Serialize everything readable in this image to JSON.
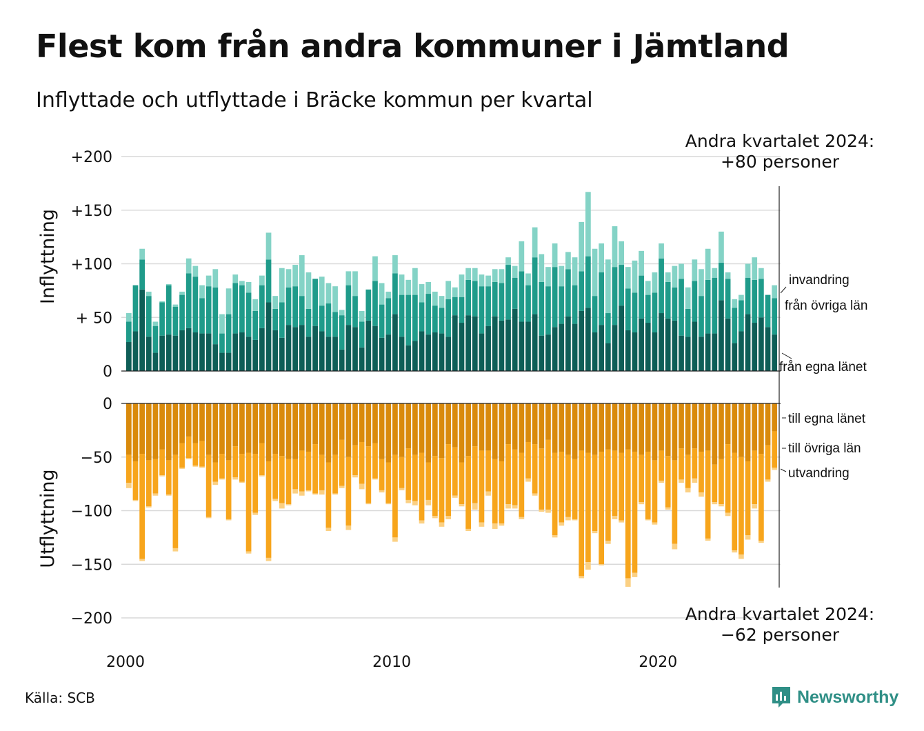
{
  "title": "Flest kom från andra kommuner i Jämtland",
  "subtitle": "Inflyttade och utflyttade i Bräcke kommun per kvartal",
  "source": "Källa: SCB",
  "brand": "Newsworthy",
  "annotations": {
    "in_line1": "Andra kvartalet 2024:",
    "in_line2": "+80 personer",
    "out_line1": "Andra kvartalet 2024:",
    "out_line2": "−62 personer"
  },
  "colors": {
    "in_own_county": "#0e5e57",
    "in_other_counties": "#1f9b8a",
    "in_immigration": "#84d3c6",
    "out_own_county": "#d98a0c",
    "out_other_counties": "#f7a51c",
    "out_emigration": "#fbd083",
    "brand": "#2f8f86"
  },
  "chart_data": [
    {
      "type": "bar",
      "stacked": true,
      "axis_title": "Inflyttning",
      "ylim": [
        0,
        200
      ],
      "yticks": [
        0,
        50,
        100,
        150,
        200
      ],
      "ytick_labels": [
        "0",
        "+ 50",
        "+100",
        "+150",
        "+200"
      ],
      "grid": true,
      "x_start": "2000 Q1",
      "x_end": "2024 Q2",
      "xtick_labels": [
        "2000",
        "2010",
        "2020"
      ],
      "series": [
        {
          "name": "från egna länet",
          "values": [
            27,
            37,
            76,
            32,
            17,
            33,
            34,
            33,
            38,
            40,
            36,
            35,
            35,
            25,
            17,
            17,
            35,
            36,
            32,
            29,
            40,
            64,
            38,
            31,
            43,
            41,
            43,
            32,
            42,
            37,
            32,
            32,
            20,
            43,
            41,
            22,
            47,
            42,
            31,
            34,
            53,
            32,
            24,
            28,
            37,
            34,
            36,
            35,
            32,
            52,
            45,
            52,
            51,
            35,
            42,
            51,
            47,
            48,
            58,
            46,
            46,
            53,
            33,
            34,
            41,
            44,
            51,
            44,
            56,
            59,
            36,
            43,
            26,
            43,
            61,
            38,
            36,
            49,
            45,
            36,
            54,
            49,
            47,
            33,
            32,
            46,
            32,
            35,
            35,
            66,
            49,
            26,
            37,
            53,
            45,
            50,
            41,
            34
          ]
        },
        {
          "name": "från övriga län",
          "values": [
            19,
            43,
            28,
            38,
            25,
            31,
            46,
            27,
            33,
            51,
            52,
            33,
            44,
            53,
            18,
            36,
            47,
            44,
            41,
            27,
            40,
            40,
            20,
            33,
            35,
            38,
            27,
            26,
            44,
            24,
            31,
            23,
            32,
            37,
            29,
            24,
            29,
            42,
            31,
            34,
            38,
            39,
            47,
            43,
            27,
            38,
            25,
            24,
            35,
            17,
            24,
            33,
            33,
            44,
            37,
            32,
            35,
            51,
            29,
            47,
            34,
            53,
            50,
            45,
            56,
            35,
            44,
            36,
            37,
            48,
            34,
            49,
            28,
            54,
            38,
            39,
            37,
            40,
            26,
            37,
            51,
            34,
            31,
            53,
            26,
            38,
            38,
            50,
            52,
            35,
            37,
            33,
            29,
            34,
            40,
            36,
            30,
            34
          ]
        },
        {
          "name": "invandring",
          "values": [
            8,
            0,
            10,
            4,
            4,
            1,
            1,
            2,
            3,
            14,
            10,
            12,
            10,
            17,
            18,
            24,
            8,
            4,
            10,
            11,
            9,
            25,
            12,
            32,
            17,
            20,
            38,
            34,
            0,
            27,
            19,
            24,
            5,
            13,
            23,
            10,
            0,
            23,
            20,
            6,
            17,
            19,
            14,
            25,
            17,
            11,
            13,
            11,
            17,
            9,
            21,
            11,
            12,
            11,
            10,
            12,
            13,
            7,
            11,
            28,
            11,
            28,
            26,
            18,
            22,
            19,
            16,
            26,
            46,
            60,
            44,
            27,
            50,
            38,
            22,
            20,
            30,
            23,
            13,
            19,
            14,
            9,
            20,
            14,
            20,
            20,
            25,
            29,
            9,
            29,
            6,
            8,
            5,
            13,
            21,
            10,
            0,
            12
          ]
        }
      ]
    },
    {
      "type": "bar",
      "stacked": true,
      "axis_title": "Utflyttning",
      "ylim": [
        -200,
        0
      ],
      "yticks": [
        0,
        -50,
        -100,
        -150,
        -200
      ],
      "ytick_labels": [
        "0",
        "−50",
        "−100",
        "−150",
        "−200"
      ],
      "grid": true,
      "x_start": "2000 Q1",
      "x_end": "2024 Q2",
      "series": [
        {
          "name": "till egna länet",
          "values": [
            -48,
            -54,
            -47,
            -53,
            -52,
            -43,
            -53,
            -48,
            -37,
            -31,
            -37,
            -35,
            -48,
            -55,
            -47,
            -53,
            -40,
            -47,
            -46,
            -47,
            -37,
            -54,
            -47,
            -49,
            -52,
            -52,
            -44,
            -45,
            -38,
            -48,
            -55,
            -48,
            -34,
            -50,
            -39,
            -36,
            -40,
            -37,
            -52,
            -55,
            -48,
            -50,
            -42,
            -48,
            -46,
            -55,
            -49,
            -51,
            -38,
            -41,
            -55,
            -49,
            -40,
            -44,
            -44,
            -52,
            -54,
            -38,
            -43,
            -46,
            -36,
            -38,
            -42,
            -34,
            -46,
            -45,
            -48,
            -52,
            -44,
            -46,
            -48,
            -45,
            -43,
            -44,
            -46,
            -43,
            -45,
            -48,
            -45,
            -53,
            -44,
            -49,
            -53,
            -42,
            -48,
            -42,
            -45,
            -44,
            -57,
            -52,
            -38,
            -46,
            -50,
            -54,
            -44,
            -47,
            -39,
            -26
          ]
        },
        {
          "name": "till övriga län",
          "values": [
            -26,
            -36,
            -98,
            -43,
            -32,
            -24,
            -32,
            -87,
            -23,
            -20,
            -21,
            -24,
            -58,
            -18,
            -23,
            -55,
            -29,
            -26,
            -92,
            -55,
            -30,
            -90,
            -42,
            -44,
            -42,
            -28,
            -38,
            -36,
            -46,
            -33,
            -61,
            -36,
            -43,
            -64,
            -28,
            -39,
            -53,
            -33,
            -29,
            -38,
            -77,
            -29,
            -48,
            -43,
            -63,
            -35,
            -56,
            -60,
            -67,
            -45,
            -39,
            -68,
            -53,
            -67,
            -38,
            -60,
            -58,
            -56,
            -52,
            -60,
            -34,
            -46,
            -57,
            -65,
            -77,
            -66,
            -58,
            -56,
            -117,
            -102,
            -71,
            -105,
            -85,
            -61,
            -63,
            -120,
            -113,
            -44,
            -63,
            -58,
            -28,
            -48,
            -78,
            -29,
            -31,
            -28,
            -38,
            -82,
            -35,
            -42,
            -64,
            -91,
            -91,
            -69,
            -50,
            -81,
            -32,
            -34
          ]
        },
        {
          "name": "utvandring",
          "values": [
            -5,
            -1,
            -2,
            -1,
            -2,
            -1,
            -1,
            -3,
            -1,
            -1,
            -1,
            -1,
            -1,
            -3,
            -1,
            -1,
            -2,
            -1,
            -2,
            -2,
            -1,
            -3,
            -2,
            -5,
            -1,
            -4,
            -4,
            -1,
            -1,
            -4,
            -3,
            -1,
            -2,
            -4,
            -2,
            -5,
            -1,
            -1,
            -2,
            -1,
            -4,
            -2,
            -3,
            -4,
            -3,
            -5,
            -2,
            -4,
            -3,
            -2,
            -2,
            -2,
            -6,
            -4,
            -4,
            -5,
            -2,
            -4,
            -3,
            -2,
            -3,
            -2,
            -2,
            -3,
            -2,
            -3,
            -3,
            -1,
            -2,
            -7,
            -2,
            -1,
            -3,
            -3,
            -2,
            -8,
            -4,
            -2,
            -1,
            -2,
            -2,
            -2,
            -5,
            -3,
            -4,
            -4,
            -4,
            -2,
            -2,
            -2,
            -3,
            -2,
            -4,
            -4,
            -4,
            -2,
            -2,
            -2
          ]
        }
      ]
    }
  ]
}
